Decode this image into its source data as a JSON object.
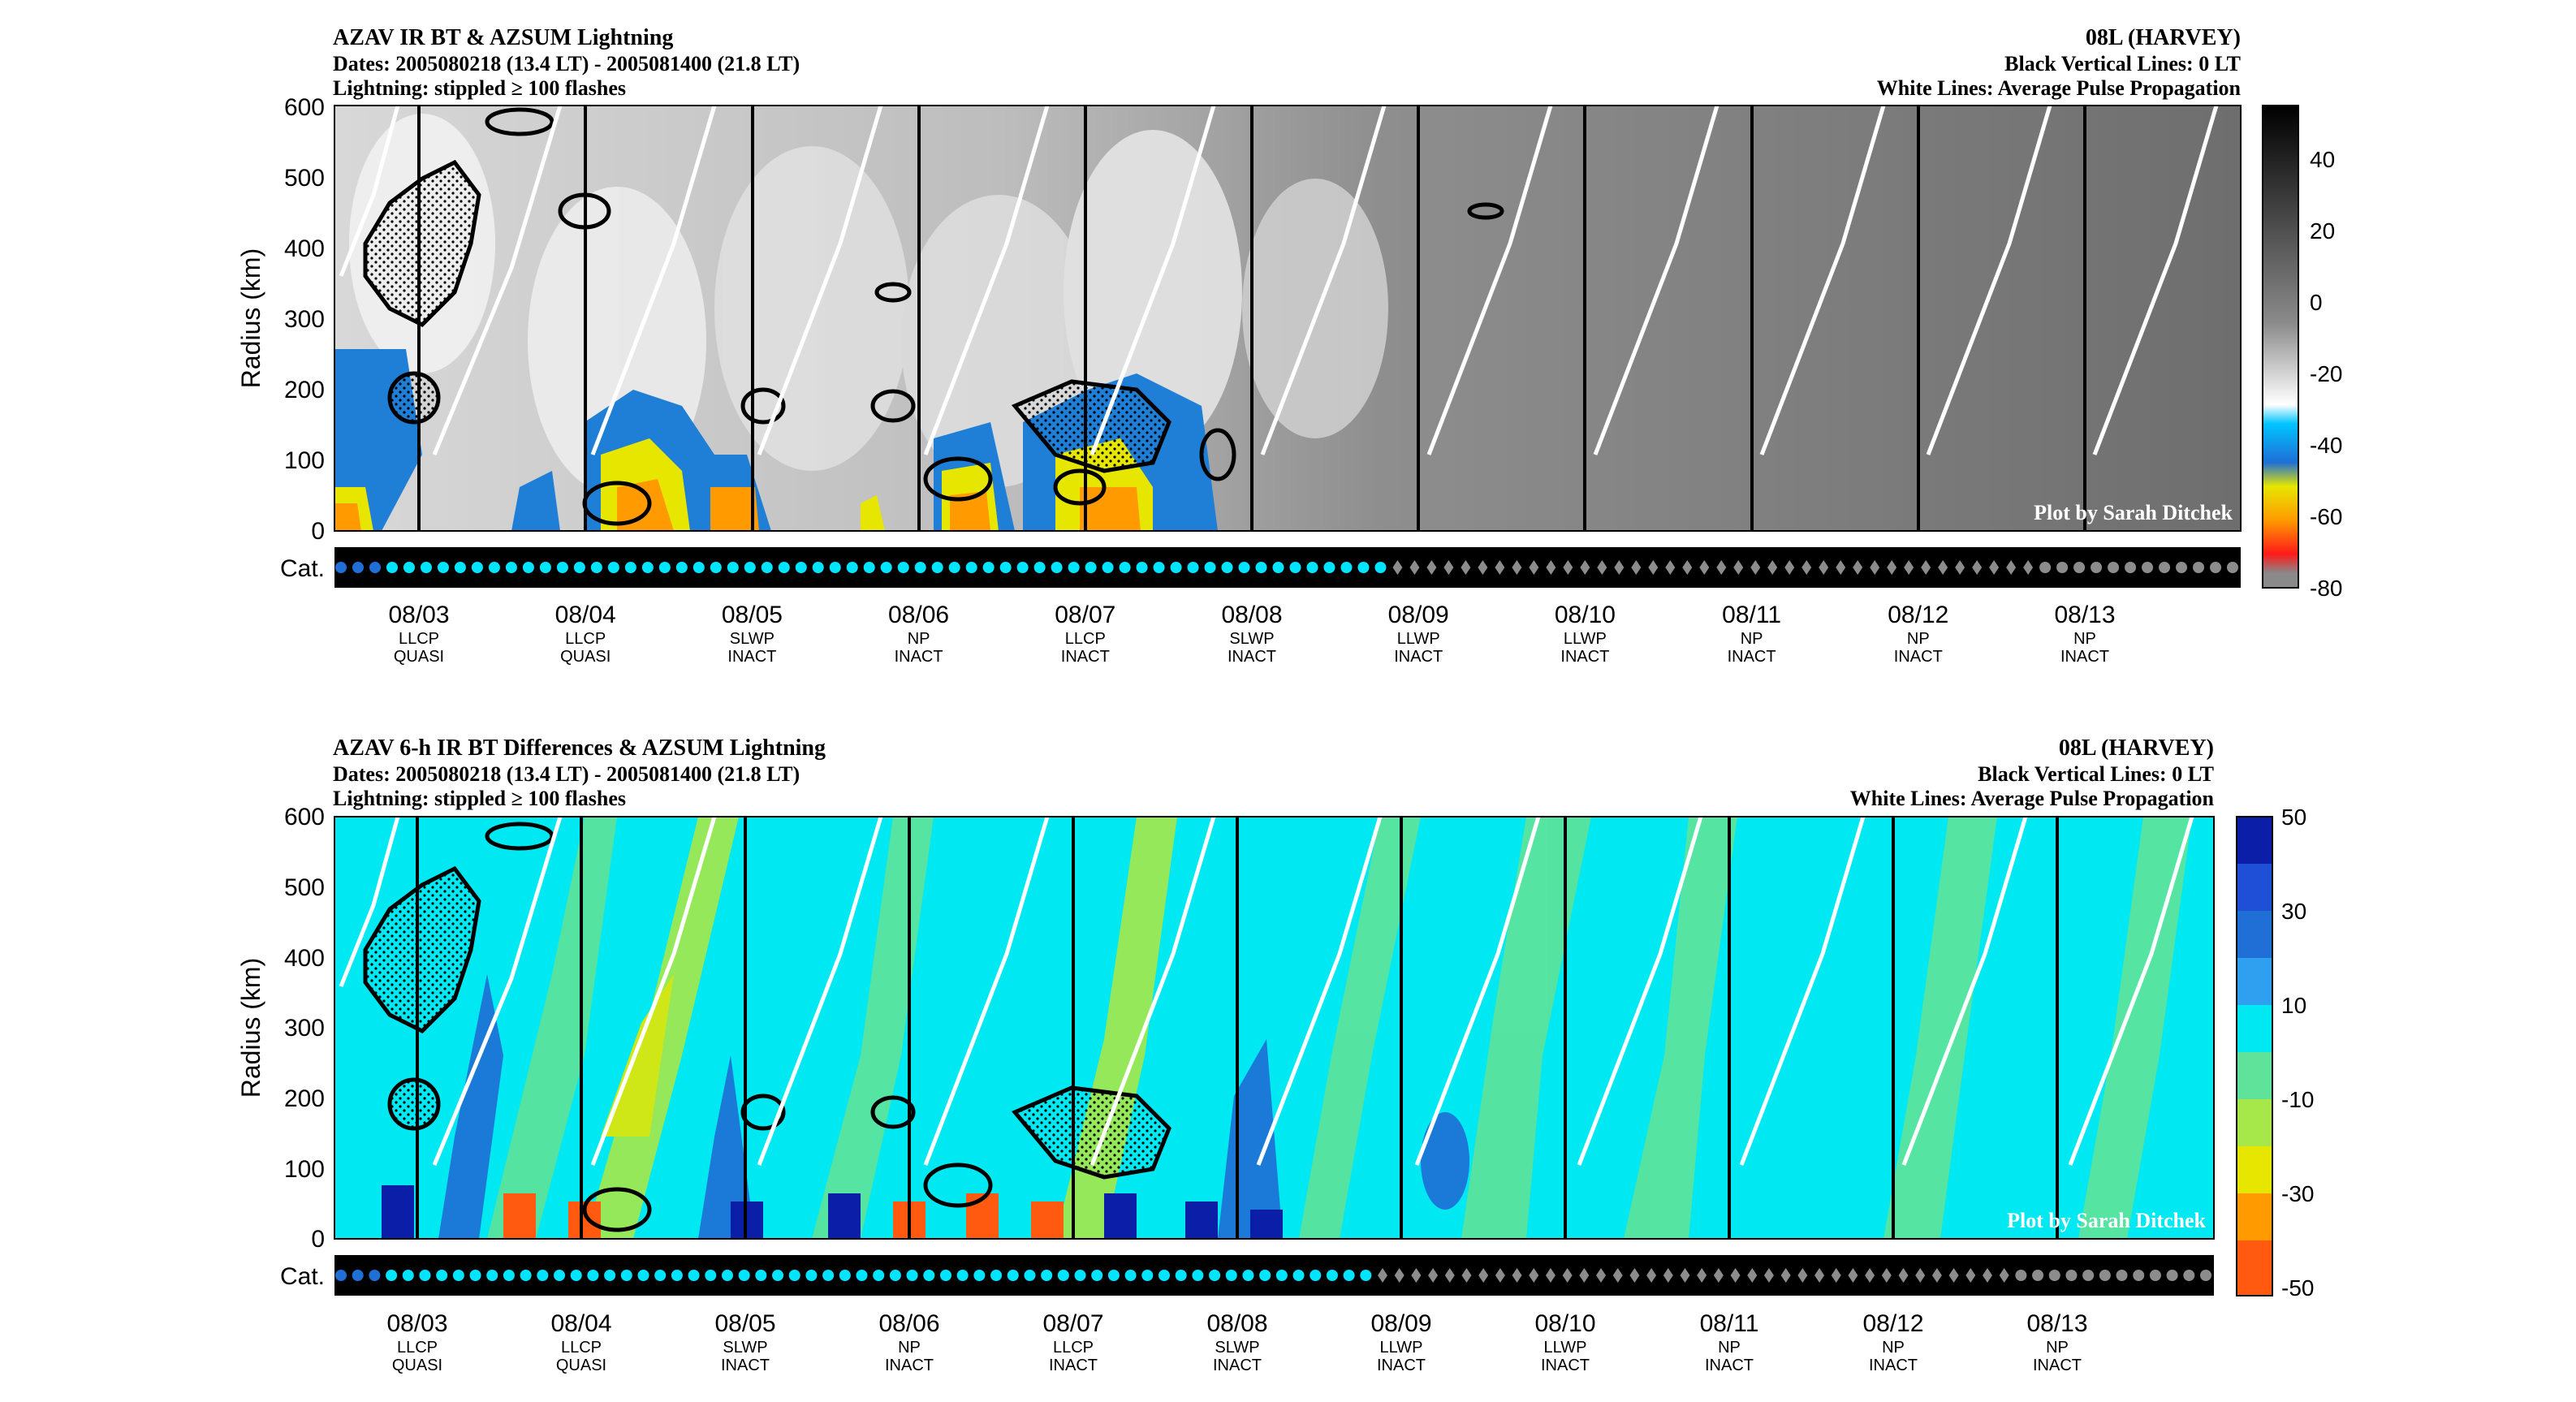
{
  "chart_data": [
    {
      "type": "heatmap",
      "title": "AZAV IR BT & AZSUM Lightning",
      "subtitle_dates": "Dates: 2005080218 (13.4 LT) - 2005081400 (21.8 LT)",
      "subtitle_lightning": "Lightning: stippled ≥ 100 flashes",
      "storm": "08L (HARVEY)",
      "note_black": "Black Vertical Lines: 0 LT",
      "note_white": "White Lines: Average Pulse Propagation",
      "watermark": "Plot by Sarah Ditchek",
      "ylabel": "Radius (km)",
      "yticks": [
        "0",
        "100",
        "200",
        "300",
        "400",
        "500",
        "600"
      ],
      "ylim": [
        0,
        600
      ],
      "cat_label": "Cat.",
      "colorbar": {
        "ticks": [
          "40",
          "20",
          "0",
          "-20",
          "-40",
          "-60",
          "-80"
        ],
        "range": [
          -80,
          55
        ]
      }
    },
    {
      "type": "heatmap",
      "title": "AZAV 6-h IR BT Differences & AZSUM Lightning",
      "subtitle_dates": "Dates: 2005080218 (13.4 LT) - 2005081400 (21.8 LT)",
      "subtitle_lightning": "Lightning: stippled ≥ 100 flashes",
      "storm": "08L (HARVEY)",
      "note_black": "Black Vertical Lines: 0 LT",
      "note_white": "White Lines: Average Pulse Propagation",
      "watermark": "Plot by Sarah Ditchek",
      "ylabel": "Radius (km)",
      "yticks": [
        "0",
        "100",
        "200",
        "300",
        "400",
        "500",
        "600"
      ],
      "ylim": [
        0,
        600
      ],
      "cat_label": "Cat.",
      "colorbar": {
        "ticks": [
          "50",
          "30",
          "10",
          "-10",
          "-30",
          "-50"
        ],
        "range": [
          -50,
          50
        ]
      }
    }
  ],
  "days": [
    {
      "date": "08/03",
      "phase": "LLCP",
      "state": "QUASI"
    },
    {
      "date": "08/04",
      "phase": "LLCP",
      "state": "QUASI"
    },
    {
      "date": "08/05",
      "phase": "SLWP",
      "state": "INACT"
    },
    {
      "date": "08/06",
      "phase": "NP",
      "state": "INACT"
    },
    {
      "date": "08/07",
      "phase": "LLCP",
      "state": "INACT"
    },
    {
      "date": "08/08",
      "phase": "SLWP",
      "state": "INACT"
    },
    {
      "date": "08/09",
      "phase": "LLWP",
      "state": "INACT"
    },
    {
      "date": "08/10",
      "phase": "LLWP",
      "state": "INACT"
    },
    {
      "date": "08/11",
      "phase": "NP",
      "state": "INACT"
    },
    {
      "date": "08/12",
      "phase": "NP",
      "state": "INACT"
    },
    {
      "date": "08/13",
      "phase": "NP",
      "state": "INACT"
    }
  ],
  "category_track": {
    "sequence": "blue x3, cyan dots through 08/08, gray diamonds 08/09-08/12, gray dots 08/13",
    "colors": {
      "depression_blue": "#1f6fd6",
      "storm_cyan": "#00e5ff",
      "remnant_gray": "#8c8c8c"
    }
  }
}
